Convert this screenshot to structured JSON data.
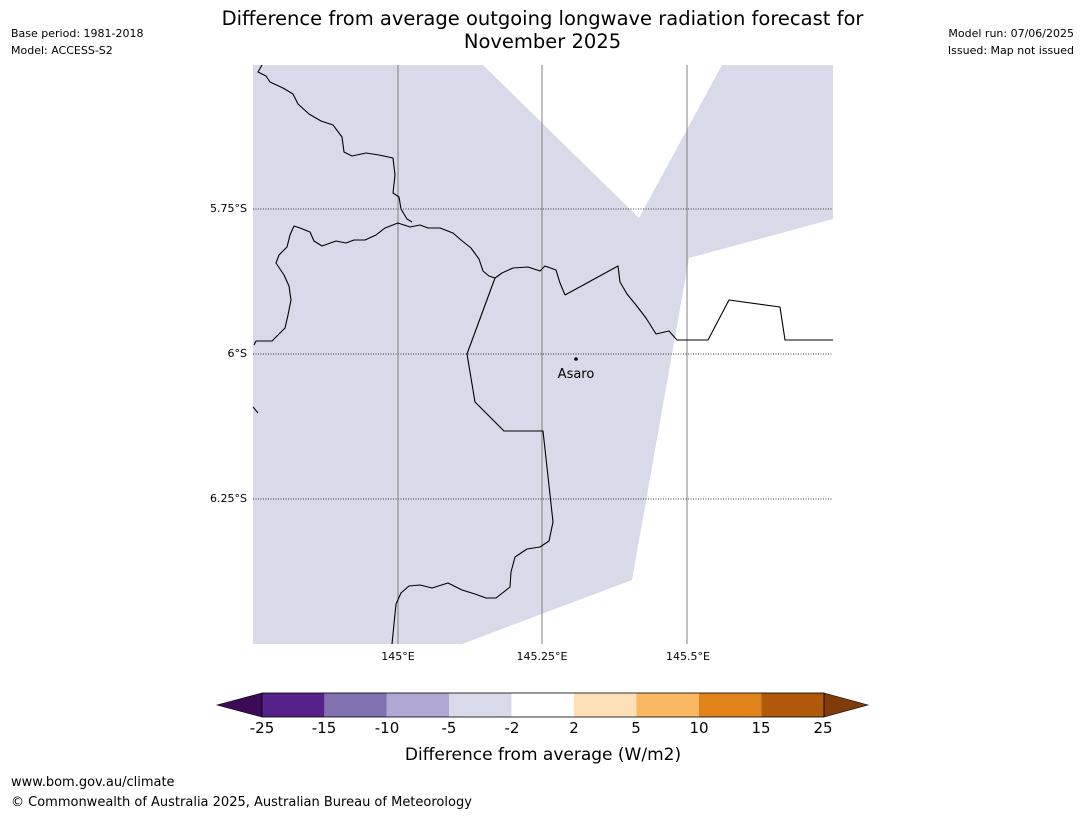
{
  "header": {
    "base_period": "Base period: 1981-2018",
    "model": "Model: ACCESS-S2",
    "title_line1": "Difference from average outgoing longwave radiation forecast for",
    "title_line2": "November 2025",
    "model_run": "Model run: 07/06/2025",
    "issued": "Issued: Map not issued"
  },
  "map": {
    "lat_labels": [
      "5.75°S",
      "6°S",
      "6.25°S"
    ],
    "lon_labels": [
      "145°E",
      "145.25°E",
      "145.5°E"
    ],
    "place_name": "Asaro",
    "shaded_category": "-5 to -2",
    "colors": {
      "shade": "#d8d9e9",
      "gridline": "#808080",
      "coastline": "#000000"
    }
  },
  "colorbar": {
    "label": "Difference from average (W/m2)",
    "ticks": [
      "-25",
      "-15",
      "-10",
      "-5",
      "-2",
      "2",
      "5",
      "10",
      "15",
      "25"
    ],
    "bins": [
      {
        "range": "< -25",
        "color": "#3c0a56"
      },
      {
        "range": "-25 to -15",
        "color": "#56228a"
      },
      {
        "range": "-15 to -10",
        "color": "#8271b0"
      },
      {
        "range": "-10 to -5",
        "color": "#b0a8d2"
      },
      {
        "range": "-5 to -2",
        "color": "#d8d9e9"
      },
      {
        "range": "-2 to 2",
        "color": "#ffffff"
      },
      {
        "range": "2 to 5",
        "color": "#fee0b6"
      },
      {
        "range": "5 to 10",
        "color": "#fbb862"
      },
      {
        "range": "10 to 15",
        "color": "#e1821a"
      },
      {
        "range": "15 to 25",
        "color": "#b2580b"
      },
      {
        "range": "> 25",
        "color": "#7f3b08"
      }
    ]
  },
  "footer": {
    "url": "www.bom.gov.au/climate",
    "copyright": "© Commonwealth of Australia 2025, Australian Bureau of Meteorology"
  }
}
